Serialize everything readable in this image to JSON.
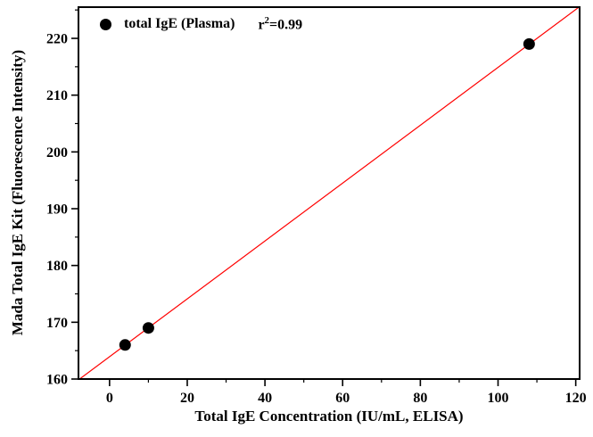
{
  "chart_data": {
    "type": "scatter",
    "title": "",
    "xlabel": "Total IgE Concentration (IU/mL, ELISA)",
    "ylabel": "Mada Total IgE Kit (Fluorescence Intensity)",
    "legend": {
      "label": "total IgE (Plasma)",
      "r2_base": "r",
      "r2_exponent": "2",
      "r2_rest": "=0.99"
    },
    "legend_position": "top-left-inside",
    "grid": false,
    "series": [
      {
        "name": "total IgE (Plasma)",
        "marker": "filled-circle",
        "color": "#000000",
        "points": [
          [
            4,
            166
          ],
          [
            10,
            169
          ],
          [
            108,
            219
          ]
        ]
      }
    ],
    "fit": {
      "type": "linear",
      "slope": 0.5096,
      "intercept": 163.93,
      "r_squared": 0.99,
      "color": "#ff0000"
    },
    "xlim": [
      -8,
      121
    ],
    "ylim": [
      160,
      225.5
    ],
    "x_ticks": [
      0,
      20,
      40,
      60,
      80,
      100,
      120
    ],
    "y_ticks": [
      160,
      170,
      180,
      190,
      200,
      210,
      220
    ],
    "x_minor_step": 10,
    "y_minor_step": 5,
    "frame_color": "#000000"
  }
}
